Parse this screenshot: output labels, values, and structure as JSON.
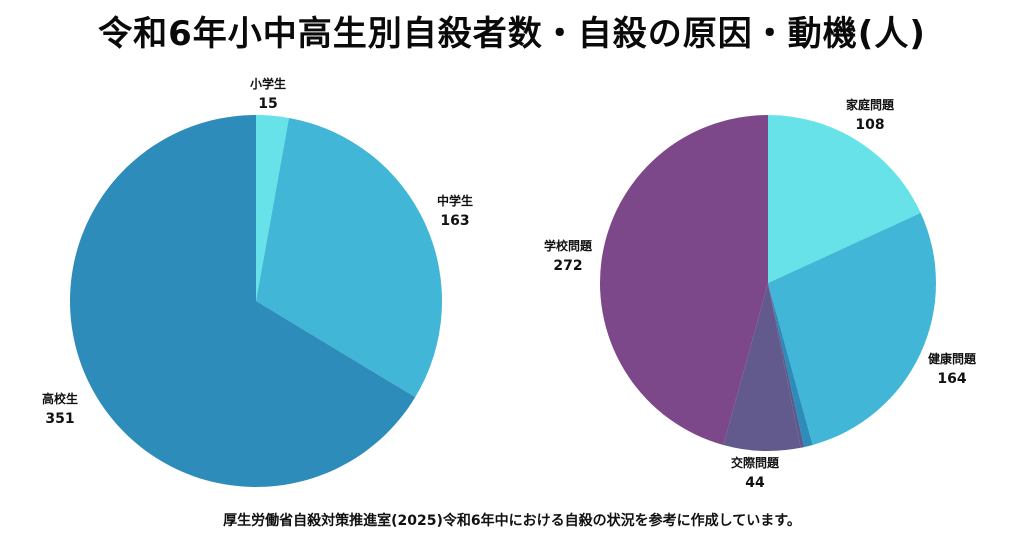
{
  "title": "令和6年小中高生別自殺者数・自殺の原因・動機(人)",
  "source": "厚生労働省自殺対策推進室(2025)令和6年中における自殺の状況を参考に作成しています。",
  "chart_data": [
    {
      "type": "pie",
      "title": "",
      "slices": [
        {
          "label": "小学生",
          "value": 15,
          "color": "#66e2e8"
        },
        {
          "label": "中学生",
          "value": 163,
          "color": "#42b6d6"
        },
        {
          "label": "高校生",
          "value": 351,
          "color": "#2e8cba"
        }
      ]
    },
    {
      "type": "pie",
      "title": "",
      "slices": [
        {
          "label": "家庭問題",
          "value": 108,
          "color": "#66e2e8"
        },
        {
          "label": "健康問題",
          "value": 164,
          "color": "#42b6d6"
        },
        {
          "label": "",
          "value": 5,
          "color": "#2e8cba"
        },
        {
          "label": "",
          "value": 2,
          "color": "#5a5a8c"
        },
        {
          "label": "交際問題",
          "value": 44,
          "color": "#625a8c"
        },
        {
          "label": "学校問題",
          "value": 272,
          "color": "#7d4889"
        }
      ]
    }
  ]
}
